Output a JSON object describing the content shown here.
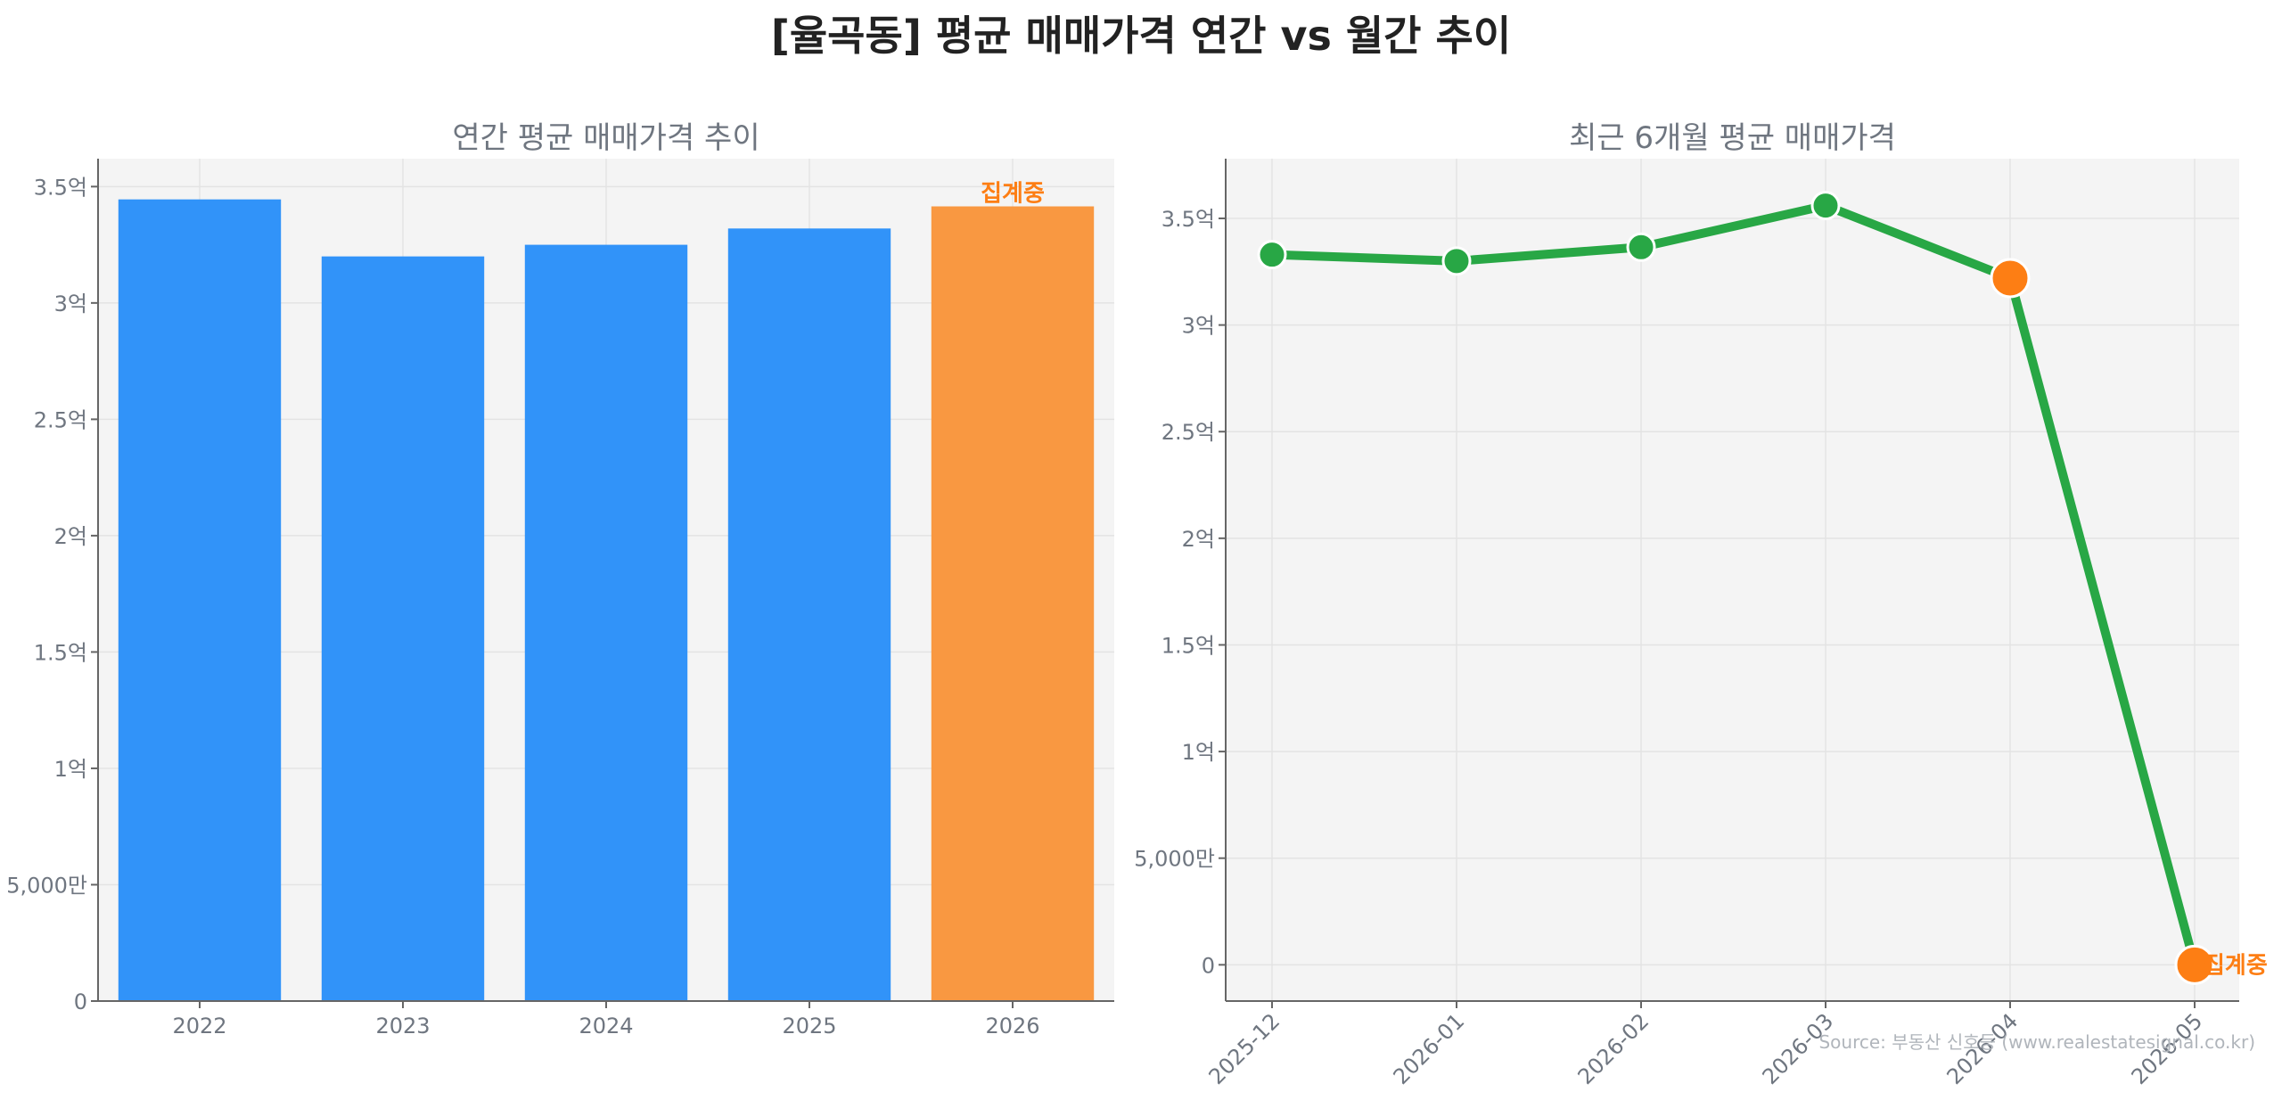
{
  "title": "[율곡동] 평균 매매가격 연간 vs 월간 추이",
  "source": "Source: 부동산 신호등 (www.realestatesignal.co.kr)",
  "colors": {
    "bar": "#3193f9",
    "bar_partial": "#f99841",
    "line": "#28a745",
    "highlight_point": "#fd7e14",
    "highlight_text": "#fd7e14",
    "plot_bg": "#f4f4f4"
  },
  "chart_data": [
    {
      "type": "bar",
      "title": "연간 평균 매매가격 추이",
      "categories": [
        "2022",
        "2023",
        "2024",
        "2025",
        "2026"
      ],
      "values": [
        34450,
        32000,
        32500,
        33200,
        34150
      ],
      "unit": "만원",
      "ylim": [
        0,
        36200
      ],
      "yticks": [
        0,
        5000,
        10000,
        15000,
        20000,
        25000,
        30000,
        35000
      ],
      "ytick_labels": [
        "0",
        "5,000만",
        "1억",
        "1.5억",
        "2억",
        "2.5억",
        "3억",
        "3.5억"
      ],
      "partial_category": "2026",
      "annotation": "집계중",
      "grid": true
    },
    {
      "type": "line",
      "title": "최근 6개월 평균 매매가격",
      "x": [
        "2025-12",
        "2026-01",
        "2026-02",
        "2026-03",
        "2026-04",
        "2026-05"
      ],
      "values": [
        33300,
        33000,
        33650,
        35600,
        32200,
        0
      ],
      "unit": "만원",
      "ylim": [
        -1700,
        37800
      ],
      "yticks": [
        0,
        5000,
        10000,
        15000,
        20000,
        25000,
        30000,
        35000
      ],
      "ytick_labels": [
        "0",
        "5,000만",
        "1억",
        "1.5억",
        "2억",
        "2.5억",
        "3억",
        "3.5억"
      ],
      "highlight_points": [
        "2026-04",
        "2026-05"
      ],
      "annotation": "집계중",
      "annotation_at": "2026-05",
      "grid": true
    }
  ]
}
